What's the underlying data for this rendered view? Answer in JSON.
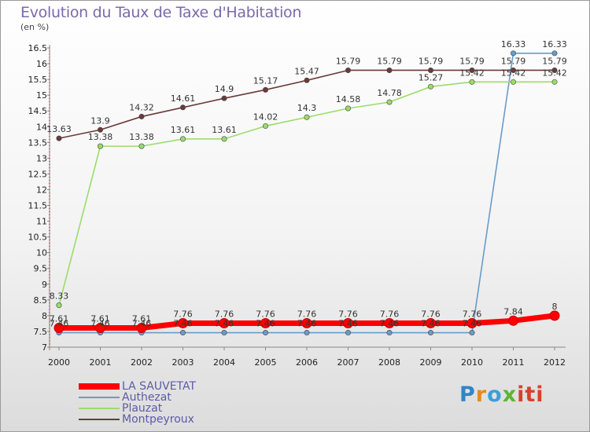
{
  "title": "Evolution du Taux de Taxe d'Habitation",
  "subtitle": "(en %)",
  "brand": "Proxiti",
  "chart_data": {
    "type": "line",
    "x": [
      "2000",
      "2001",
      "2002",
      "2003",
      "2004",
      "2005",
      "2006",
      "2007",
      "2008",
      "2009",
      "2010",
      "2011",
      "2012"
    ],
    "ylim": [
      7,
      16.5
    ],
    "yticks": [
      "7",
      "7.5",
      "8",
      "8.5",
      "9",
      "9.5",
      "10",
      "10.5",
      "11",
      "11.5",
      "12",
      "12.5",
      "13",
      "13.5",
      "14",
      "14.5",
      "15",
      "15.5",
      "16",
      "16.5"
    ],
    "grid": false,
    "legend_position": "bottom-left",
    "series": [
      {
        "name": "LA SAUVETAT",
        "color": "#ff0000",
        "values": [
          7.61,
          7.61,
          7.61,
          7.76,
          7.76,
          7.76,
          7.76,
          7.76,
          7.76,
          7.76,
          7.76,
          7.84,
          8
        ],
        "labels": [
          "7.61",
          "7.61",
          "7.61",
          "7.76",
          "7.76",
          "7.76",
          "7.76",
          "7.76",
          "7.76",
          "7.76",
          "7.76",
          "7.84",
          "8"
        ]
      },
      {
        "name": "Authezat",
        "color": "#6a9bc8",
        "values": [
          7.46,
          7.46,
          7.46,
          7.46,
          7.46,
          7.46,
          7.46,
          7.46,
          7.46,
          7.46,
          7.46,
          16.33,
          16.33
        ],
        "labels": [
          "7.46",
          "7.46",
          "7.46",
          "7.46",
          "7.46",
          "7.46",
          "7.46",
          "7.46",
          "7.46",
          "7.46",
          "7.46",
          "16.33",
          "16.33"
        ]
      },
      {
        "name": "Plauzat",
        "color": "#9bdc6a",
        "values": [
          8.33,
          13.38,
          13.38,
          13.61,
          13.61,
          14.02,
          14.3,
          14.58,
          14.78,
          15.27,
          15.42,
          15.42,
          15.42
        ],
        "labels": [
          "8.33",
          "13.38",
          "13.38",
          "13.61",
          "13.61",
          "14.02",
          "14.3",
          "14.58",
          "14.78",
          "15.27",
          "15.42",
          "15.42",
          "15.42"
        ]
      },
      {
        "name": "Montpeyroux",
        "color": "#6b3a3a",
        "values": [
          13.63,
          13.9,
          14.32,
          14.61,
          14.9,
          15.17,
          15.47,
          15.79,
          15.79,
          15.79,
          15.79,
          15.79,
          15.79
        ],
        "labels": [
          "13.63",
          "13.9",
          "14.32",
          "14.61",
          "14.9",
          "15.17",
          "15.47",
          "15.79",
          "15.79",
          "15.79",
          "15.79",
          "15.79",
          "15.79"
        ]
      }
    ]
  }
}
